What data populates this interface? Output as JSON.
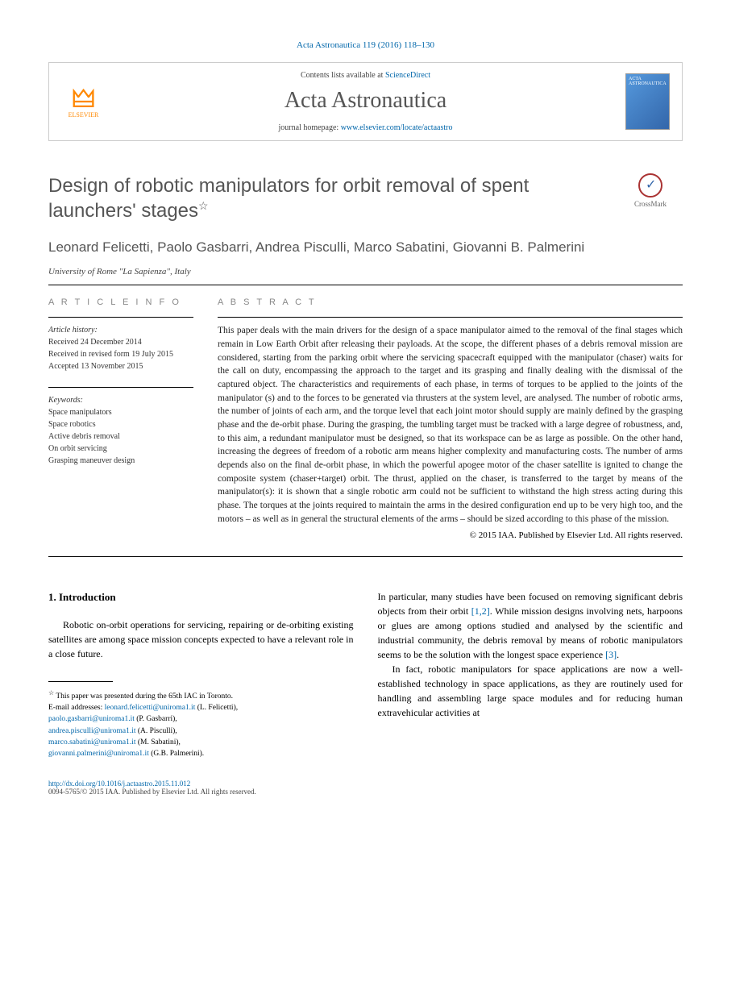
{
  "citation": {
    "journal": "Acta Astronautica",
    "volume": "119",
    "year": "2016",
    "pages": "118–130"
  },
  "header": {
    "publisher_logo": "ELSEVIER",
    "contents_prefix": "Contents lists available at ",
    "contents_link": "ScienceDirect",
    "journal_name": "Acta Astronautica",
    "homepage_prefix": "journal homepage: ",
    "homepage_url": "www.elsevier.com/locate/actaastro"
  },
  "title": "Design of robotic manipulators for orbit removal of spent launchers' stages",
  "star_note_marker": "☆",
  "crossmark_label": "CrossMark",
  "authors": "Leonard Felicetti, Paolo Gasbarri, Andrea Pisculli, Marco Sabatini, Giovanni B. Palmerini",
  "affiliation": "University of Rome \"La Sapienza\", Italy",
  "article_info": {
    "heading": "A R T I C L E   I N F O",
    "history_label": "Article history:",
    "received": "Received 24 December 2014",
    "revised": "Received in revised form 19 July 2015",
    "accepted": "Accepted 13 November 2015",
    "keywords_label": "Keywords:",
    "keywords": [
      "Space manipulators",
      "Space robotics",
      "Active debris removal",
      "On orbit servicing",
      "Grasping maneuver design"
    ]
  },
  "abstract": {
    "heading": "A B S T R A C T",
    "text": "This paper deals with the main drivers for the design of a space manipulator aimed to the removal of the final stages which remain in Low Earth Orbit after releasing their payloads. At the scope, the different phases of a debris removal mission are considered, starting from the parking orbit where the servicing spacecraft equipped with the manipulator (chaser) waits for the call on duty, encompassing the approach to the target and its grasping and finally dealing with the dismissal of the captured object. The characteristics and requirements of each phase, in terms of torques to be applied to the joints of the manipulator (s) and to the forces to be generated via thrusters at the system level, are analysed. The number of robotic arms, the number of joints of each arm, and the torque level that each joint motor should supply are mainly defined by the grasping phase and the de-orbit phase. During the grasping, the tumbling target must be tracked with a large degree of robustness, and, to this aim, a redundant manipulator must be designed, so that its workspace can be as large as possible. On the other hand, increasing the degrees of freedom of a robotic arm means higher complexity and manufacturing costs. The number of arms depends also on the final de-orbit phase, in which the powerful apogee motor of the chaser satellite is ignited to change the composite system (chaser+target) orbit. The thrust, applied on the chaser, is transferred to the target by means of the manipulator(s): it is shown that a single robotic arm could not be sufficient to withstand the high stress acting during this phase. The torques at the joints required to maintain the arms in the desired configuration end up to be very high too, and the motors – as well as in general the structural elements of the arms – should be sized according to this phase of the mission.",
    "copyright": "© 2015 IAA. Published by Elsevier Ltd. All rights reserved."
  },
  "introduction": {
    "heading": "1. Introduction",
    "para1": "Robotic on-orbit operations for servicing, repairing or de-orbiting existing satellites are among space mission concepts expected to have a relevant role in a close future.",
    "para2a": "In particular, many studies have been focused on removing significant debris objects from their orbit ",
    "refs12": "[1,2]",
    "para2b": ". While mission designs involving nets, harpoons or glues are among options studied and analysed by the scientific and industrial community, the debris removal by means of robotic manipulators seems to be the solution with the longest space experience ",
    "ref3": "[3]",
    "para2c": ".",
    "para3": "In fact, robotic manipulators for space applications are now a well-established technology in space applications, as they are routinely used for handling and assembling large space modules and for reducing human extravehicular activities at"
  },
  "footnotes": {
    "star_text": "This paper was presented during the 65th IAC in Toronto.",
    "email_label": "E-mail addresses:",
    "emails": [
      {
        "addr": "leonard.felicetti@uniroma1.it",
        "name": "(L. Felicetti),"
      },
      {
        "addr": "paolo.gasbarri@uniroma1.it",
        "name": "(P. Gasbarri),"
      },
      {
        "addr": "andrea.pisculli@uniroma1.it",
        "name": "(A. Pisculli),"
      },
      {
        "addr": "marco.sabatini@uniroma1.it",
        "name": "(M. Sabatini),"
      },
      {
        "addr": "giovanni.palmerini@uniroma1.it",
        "name": "(G.B. Palmerini)."
      }
    ]
  },
  "footer": {
    "doi": "http://dx.doi.org/10.1016/j.actaastro.2015.11.012",
    "issn_line": "0094-5765/© 2015 IAA. Published by Elsevier Ltd. All rights reserved."
  },
  "colors": {
    "link": "#0066aa",
    "heading_gray": "#555555",
    "text": "#222222",
    "elsevier_orange": "#ff8800"
  }
}
